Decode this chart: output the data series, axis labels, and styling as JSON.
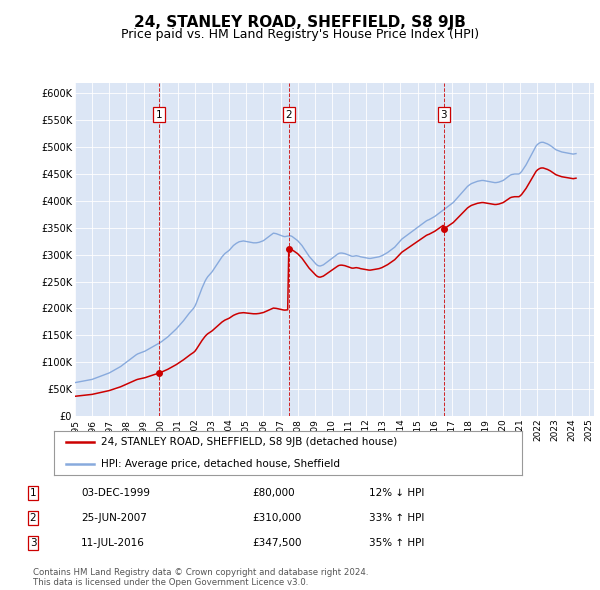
{
  "title": "24, STANLEY ROAD, SHEFFIELD, S8 9JB",
  "subtitle": "Price paid vs. HM Land Registry's House Price Index (HPI)",
  "title_fontsize": 11,
  "subtitle_fontsize": 9,
  "ylim": [
    0,
    620000
  ],
  "yticks": [
    0,
    50000,
    100000,
    150000,
    200000,
    250000,
    300000,
    350000,
    400000,
    450000,
    500000,
    550000,
    600000
  ],
  "ytick_labels": [
    "£0",
    "£50K",
    "£100K",
    "£150K",
    "£200K",
    "£250K",
    "£300K",
    "£350K",
    "£400K",
    "£450K",
    "£500K",
    "£550K",
    "£600K"
  ],
  "plot_bg_color": "#dce6f5",
  "red_color": "#cc0000",
  "blue_color": "#88aadd",
  "sales": [
    {
      "date_num": 1999.92,
      "price": 80000,
      "label": "1"
    },
    {
      "date_num": 2007.48,
      "price": 310000,
      "label": "2"
    },
    {
      "date_num": 2016.52,
      "price": 347500,
      "label": "3"
    }
  ],
  "legend_entries": [
    "24, STANLEY ROAD, SHEFFIELD, S8 9JB (detached house)",
    "HPI: Average price, detached house, Sheffield"
  ],
  "table_rows": [
    [
      "1",
      "03-DEC-1999",
      "£80,000",
      "12% ↓ HPI"
    ],
    [
      "2",
      "25-JUN-2007",
      "£310,000",
      "33% ↑ HPI"
    ],
    [
      "3",
      "11-JUL-2016",
      "£347,500",
      "35% ↑ HPI"
    ]
  ],
  "footer": "Contains HM Land Registry data © Crown copyright and database right 2024.\nThis data is licensed under the Open Government Licence v3.0.",
  "hpi_months": [
    1995.0,
    1995.083,
    1995.167,
    1995.25,
    1995.333,
    1995.417,
    1995.5,
    1995.583,
    1995.667,
    1995.75,
    1995.833,
    1995.917,
    1996.0,
    1996.083,
    1996.167,
    1996.25,
    1996.333,
    1996.417,
    1996.5,
    1996.583,
    1996.667,
    1996.75,
    1996.833,
    1996.917,
    1997.0,
    1997.083,
    1997.167,
    1997.25,
    1997.333,
    1997.417,
    1997.5,
    1997.583,
    1997.667,
    1997.75,
    1997.833,
    1997.917,
    1998.0,
    1998.083,
    1998.167,
    1998.25,
    1998.333,
    1998.417,
    1998.5,
    1998.583,
    1998.667,
    1998.75,
    1998.833,
    1998.917,
    1999.0,
    1999.083,
    1999.167,
    1999.25,
    1999.333,
    1999.417,
    1999.5,
    1999.583,
    1999.667,
    1999.75,
    1999.833,
    1999.917,
    2000.0,
    2000.083,
    2000.167,
    2000.25,
    2000.333,
    2000.417,
    2000.5,
    2000.583,
    2000.667,
    2000.75,
    2000.833,
    2000.917,
    2001.0,
    2001.083,
    2001.167,
    2001.25,
    2001.333,
    2001.417,
    2001.5,
    2001.583,
    2001.667,
    2001.75,
    2001.833,
    2001.917,
    2002.0,
    2002.083,
    2002.167,
    2002.25,
    2002.333,
    2002.417,
    2002.5,
    2002.583,
    2002.667,
    2002.75,
    2002.833,
    2002.917,
    2003.0,
    2003.083,
    2003.167,
    2003.25,
    2003.333,
    2003.417,
    2003.5,
    2003.583,
    2003.667,
    2003.75,
    2003.833,
    2003.917,
    2004.0,
    2004.083,
    2004.167,
    2004.25,
    2004.333,
    2004.417,
    2004.5,
    2004.583,
    2004.667,
    2004.75,
    2004.833,
    2004.917,
    2005.0,
    2005.083,
    2005.167,
    2005.25,
    2005.333,
    2005.417,
    2005.5,
    2005.583,
    2005.667,
    2005.75,
    2005.833,
    2005.917,
    2006.0,
    2006.083,
    2006.167,
    2006.25,
    2006.333,
    2006.417,
    2006.5,
    2006.583,
    2006.667,
    2006.75,
    2006.833,
    2006.917,
    2007.0,
    2007.083,
    2007.167,
    2007.25,
    2007.333,
    2007.417,
    2007.5,
    2007.583,
    2007.667,
    2007.75,
    2007.833,
    2007.917,
    2008.0,
    2008.083,
    2008.167,
    2008.25,
    2008.333,
    2008.417,
    2008.5,
    2008.583,
    2008.667,
    2008.75,
    2008.833,
    2008.917,
    2009.0,
    2009.083,
    2009.167,
    2009.25,
    2009.333,
    2009.417,
    2009.5,
    2009.583,
    2009.667,
    2009.75,
    2009.833,
    2009.917,
    2010.0,
    2010.083,
    2010.167,
    2010.25,
    2010.333,
    2010.417,
    2010.5,
    2010.583,
    2010.667,
    2010.75,
    2010.833,
    2010.917,
    2011.0,
    2011.083,
    2011.167,
    2011.25,
    2011.333,
    2011.417,
    2011.5,
    2011.583,
    2011.667,
    2011.75,
    2011.833,
    2011.917,
    2012.0,
    2012.083,
    2012.167,
    2012.25,
    2012.333,
    2012.417,
    2012.5,
    2012.583,
    2012.667,
    2012.75,
    2012.833,
    2012.917,
    2013.0,
    2013.083,
    2013.167,
    2013.25,
    2013.333,
    2013.417,
    2013.5,
    2013.583,
    2013.667,
    2013.75,
    2013.833,
    2013.917,
    2014.0,
    2014.083,
    2014.167,
    2014.25,
    2014.333,
    2014.417,
    2014.5,
    2014.583,
    2014.667,
    2014.75,
    2014.833,
    2014.917,
    2015.0,
    2015.083,
    2015.167,
    2015.25,
    2015.333,
    2015.417,
    2015.5,
    2015.583,
    2015.667,
    2015.75,
    2015.833,
    2015.917,
    2016.0,
    2016.083,
    2016.167,
    2016.25,
    2016.333,
    2016.417,
    2016.5,
    2016.583,
    2016.667,
    2016.75,
    2016.833,
    2016.917,
    2017.0,
    2017.083,
    2017.167,
    2017.25,
    2017.333,
    2017.417,
    2017.5,
    2017.583,
    2017.667,
    2017.75,
    2017.833,
    2017.917,
    2018.0,
    2018.083,
    2018.167,
    2018.25,
    2018.333,
    2018.417,
    2018.5,
    2018.583,
    2018.667,
    2018.75,
    2018.833,
    2018.917,
    2019.0,
    2019.083,
    2019.167,
    2019.25,
    2019.333,
    2019.417,
    2019.5,
    2019.583,
    2019.667,
    2019.75,
    2019.833,
    2019.917,
    2020.0,
    2020.083,
    2020.167,
    2020.25,
    2020.333,
    2020.417,
    2020.5,
    2020.583,
    2020.667,
    2020.75,
    2020.833,
    2020.917,
    2021.0,
    2021.083,
    2021.167,
    2021.25,
    2021.333,
    2021.417,
    2021.5,
    2021.583,
    2021.667,
    2021.75,
    2021.833,
    2021.917,
    2022.0,
    2022.083,
    2022.167,
    2022.25,
    2022.333,
    2022.417,
    2022.5,
    2022.583,
    2022.667,
    2022.75,
    2022.833,
    2022.917,
    2023.0,
    2023.083,
    2023.167,
    2023.25,
    2023.333,
    2023.417,
    2023.5,
    2023.583,
    2023.667,
    2023.75,
    2023.833,
    2023.917,
    2024.0,
    2024.083,
    2024.167,
    2024.25
  ],
  "hpi_values": [
    62000,
    62500,
    63000,
    63500,
    64000,
    64500,
    65000,
    65500,
    66000,
    66500,
    67000,
    67500,
    68000,
    69000,
    70000,
    71000,
    72000,
    73000,
    74000,
    75000,
    76000,
    77000,
    78000,
    79000,
    80000,
    81500,
    83000,
    84500,
    86000,
    87500,
    89000,
    90500,
    92000,
    94000,
    96000,
    98000,
    100000,
    102000,
    104000,
    106000,
    108000,
    110000,
    112000,
    114000,
    115500,
    116500,
    117500,
    118500,
    119500,
    120500,
    122000,
    123500,
    125000,
    126500,
    128000,
    129500,
    131000,
    132500,
    134000,
    135500,
    137000,
    139000,
    141000,
    143000,
    145000,
    147000,
    149500,
    152000,
    154500,
    157000,
    159500,
    162000,
    165000,
    168000,
    171000,
    174000,
    177000,
    180500,
    184000,
    187500,
    191000,
    194000,
    197000,
    200000,
    204000,
    210000,
    217000,
    224000,
    231000,
    238000,
    244000,
    250000,
    255000,
    259000,
    262000,
    265000,
    268000,
    272000,
    276000,
    280000,
    284000,
    288000,
    292000,
    296000,
    299000,
    302000,
    304000,
    306000,
    308000,
    311000,
    314000,
    317000,
    319000,
    321000,
    322500,
    324000,
    324500,
    325000,
    325500,
    325000,
    324500,
    324000,
    323500,
    323000,
    322500,
    322000,
    322000,
    322000,
    322500,
    323000,
    324000,
    325000,
    326000,
    328000,
    330000,
    332000,
    334000,
    336000,
    338000,
    340000,
    339500,
    339000,
    338000,
    337000,
    336000,
    335000,
    334000,
    333500,
    334000,
    334500,
    335000,
    335000,
    334000,
    332000,
    330000,
    328000,
    326000,
    323000,
    320000,
    317000,
    313000,
    309000,
    305000,
    301000,
    297000,
    294000,
    291000,
    288000,
    285000,
    282000,
    280000,
    279000,
    279000,
    280000,
    281000,
    283000,
    285000,
    287000,
    289000,
    291000,
    293000,
    295000,
    297000,
    299000,
    301000,
    302500,
    303000,
    303000,
    302500,
    302000,
    301000,
    300000,
    299000,
    298000,
    297000,
    297000,
    297500,
    298000,
    297500,
    297000,
    296000,
    295500,
    295000,
    294500,
    294000,
    293500,
    293000,
    293000,
    293500,
    294000,
    294500,
    295000,
    295500,
    296000,
    297000,
    298000,
    299500,
    301000,
    302500,
    304000,
    306000,
    308000,
    310000,
    312000,
    314000,
    317000,
    320000,
    323000,
    326000,
    329000,
    331000,
    333000,
    335000,
    337000,
    339000,
    341000,
    343000,
    345000,
    347000,
    349000,
    351000,
    353000,
    355000,
    357000,
    359000,
    361000,
    362500,
    364000,
    365000,
    366500,
    368000,
    369500,
    371000,
    373000,
    375000,
    377000,
    379000,
    381000,
    383000,
    385000,
    387000,
    389000,
    391000,
    393000,
    395000,
    397000,
    400000,
    403000,
    406000,
    409000,
    412000,
    415000,
    418000,
    421000,
    424000,
    427000,
    429000,
    431000,
    432500,
    433500,
    434500,
    435500,
    436500,
    437000,
    437500,
    438000,
    438000,
    437500,
    437000,
    436500,
    436000,
    435500,
    435000,
    434500,
    434000,
    434000,
    434500,
    435000,
    436000,
    437000,
    438000,
    440000,
    442000,
    444000,
    446000,
    448000,
    449000,
    449500,
    450000,
    450000,
    450000,
    450000,
    452000,
    455000,
    459000,
    463000,
    467000,
    472000,
    477000,
    482000,
    487000,
    492000,
    497000,
    502000,
    505000,
    507000,
    508500,
    509000,
    509000,
    508000,
    507000,
    506000,
    504500,
    503000,
    501000,
    499000,
    497000,
    495000,
    494000,
    493000,
    492000,
    491000,
    490500,
    490000,
    489500,
    489000,
    488500,
    488000,
    487500,
    487000,
    487500,
    488000
  ]
}
